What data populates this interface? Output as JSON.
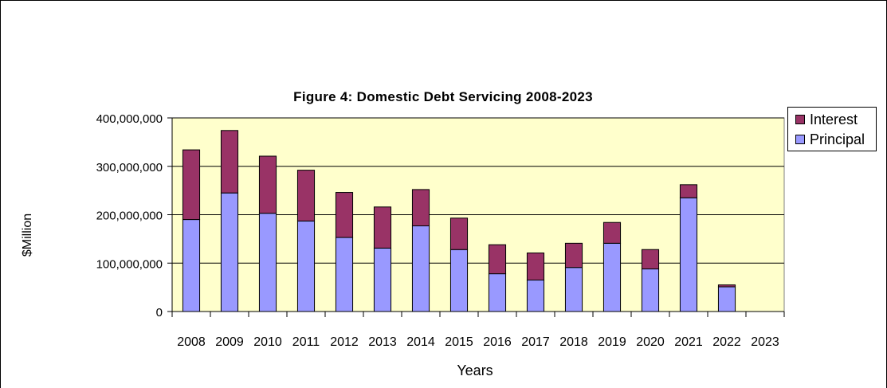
{
  "chart_data": {
    "type": "bar",
    "stacked": true,
    "title": "Figure 4: Domestic Debt Servicing 2008-2023",
    "xlabel": "Years",
    "ylabel": "$Million",
    "ylim": [
      0,
      400000000
    ],
    "yticks": [
      0,
      100000000,
      200000000,
      300000000,
      400000000
    ],
    "ytick_labels": [
      "0",
      "100,000,000",
      "200,000,000",
      "300,000,000",
      "400,000,000"
    ],
    "grid": true,
    "legend_position": "right",
    "categories": [
      "2008",
      "2009",
      "2010",
      "2011",
      "2012",
      "2013",
      "2014",
      "2015",
      "2016",
      "2017",
      "2018",
      "2019",
      "2020",
      "2021",
      "2022",
      "2023"
    ],
    "series": [
      {
        "name": "Principal",
        "color": "#9999ff",
        "values": [
          190000000,
          245000000,
          203000000,
          187000000,
          153000000,
          131000000,
          177000000,
          128000000,
          78000000,
          65000000,
          91000000,
          141000000,
          88000000,
          235000000,
          51000000,
          0
        ]
      },
      {
        "name": "Interest",
        "color": "#993366",
        "values": [
          144000000,
          129000000,
          118000000,
          105000000,
          93000000,
          85000000,
          75000000,
          65000000,
          60000000,
          56000000,
          50000000,
          43000000,
          40000000,
          27000000,
          4000000,
          0
        ]
      }
    ],
    "plot_background": "#ffffcc",
    "legend": [
      {
        "label": "Interest",
        "color": "#993366"
      },
      {
        "label": "Principal",
        "color": "#9999ff"
      }
    ]
  }
}
